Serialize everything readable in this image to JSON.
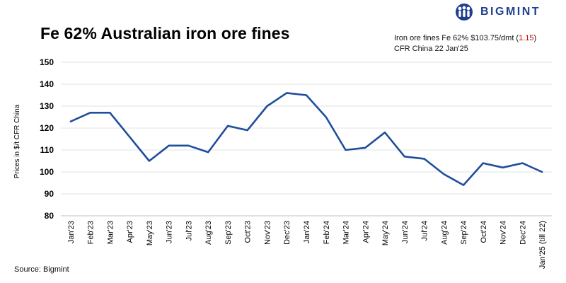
{
  "brand": {
    "name": "BIGMINT",
    "logo_icon": "bigmint-people-logo-icon",
    "color": "#1e3f8f"
  },
  "header": {
    "title": "Fe 62% Australian iron ore fines"
  },
  "info": {
    "line1_prefix": "Iron ore fines Fe 62% $103.75/dmt (",
    "change": "1.15",
    "line1_suffix": ")",
    "line2": "CFR China 22 Jan'25",
    "change_color": "#c00000"
  },
  "footer": {
    "source": "Source: Bigmint"
  },
  "chart_data": {
    "type": "line",
    "title": "Fe 62% Australian iron ore fines",
    "ylabel": "Prices in $/t CFR China",
    "xlabel": "",
    "ylim": [
      80,
      150
    ],
    "yticks": [
      80,
      90,
      100,
      110,
      120,
      130,
      140,
      150
    ],
    "grid": true,
    "line_color": "#1f4e9c",
    "categories": [
      "Jan'23",
      "Feb'23",
      "Mar'23",
      "Apr'23",
      "May'23",
      "Jun'23",
      "Jul'23",
      "Aug'23",
      "Sep'23",
      "Oct'23",
      "Nov'23",
      "Dec'23",
      "Jan'24",
      "Feb'24",
      "Mar'24",
      "Apr'24",
      "May'24",
      "Jun'24",
      "Jul'24",
      "Aug'24",
      "Sep'24",
      "Oct'24",
      "Nov'24",
      "Dec'24",
      "Jan'25 (till 22)"
    ],
    "values": [
      123,
      127,
      127,
      116,
      105,
      112,
      112,
      109,
      121,
      119,
      130,
      136,
      135,
      125,
      110,
      111,
      118,
      107,
      106,
      99,
      94,
      104,
      102,
      104,
      100
    ]
  }
}
